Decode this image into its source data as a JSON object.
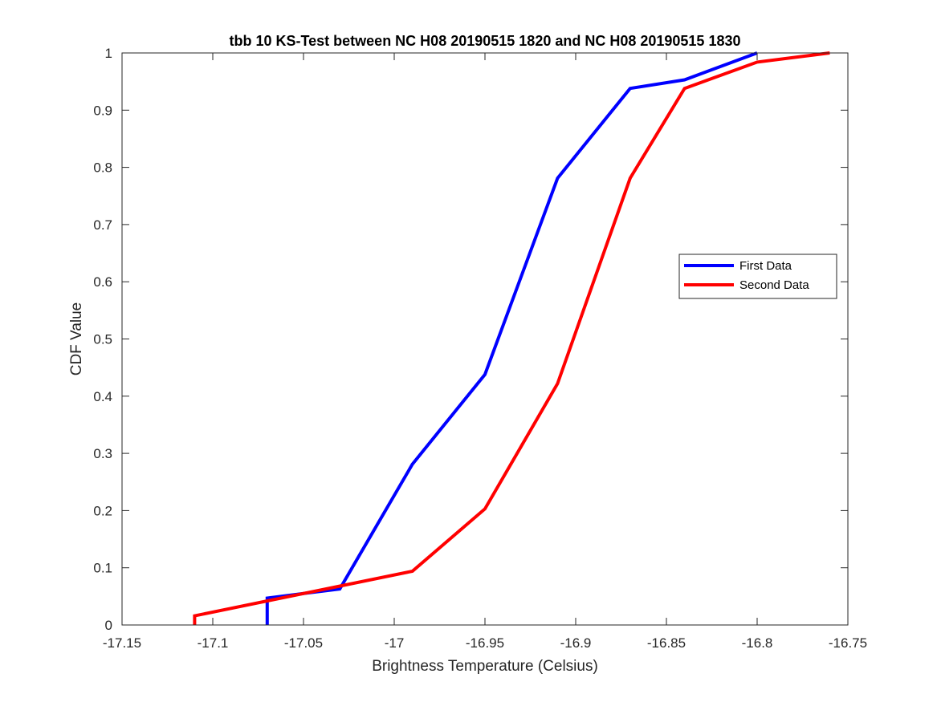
{
  "chart_data": {
    "type": "line",
    "title": "tbb 10 KS-Test between NC H08 20190515 1820 and NC H08 20190515 1830",
    "xlabel": "Brightness Temperature (Celsius)",
    "ylabel": "CDF Value",
    "xlim": [
      -17.15,
      -16.75
    ],
    "ylim": [
      0,
      1
    ],
    "x_ticks": [
      -17.15,
      -17.1,
      -17.05,
      -17,
      -16.95,
      -16.9,
      -16.85,
      -16.8,
      -16.75
    ],
    "x_tick_labels": [
      "-17.15",
      "-17.1",
      "-17.05",
      "-17",
      "-16.95",
      "-16.9",
      "-16.85",
      "-16.8",
      "-16.75"
    ],
    "y_ticks": [
      0,
      0.1,
      0.2,
      0.3,
      0.4,
      0.5,
      0.6,
      0.7,
      0.8,
      0.9,
      1
    ],
    "y_tick_labels": [
      "0",
      "0.1",
      "0.2",
      "0.3",
      "0.4",
      "0.5",
      "0.6",
      "0.7",
      "0.8",
      "0.9",
      "1"
    ],
    "grid": false,
    "legend_position": "right",
    "series": [
      {
        "name": "First Data",
        "color": "#0000ff",
        "x": [
          -17.07,
          -17.07,
          -17.03,
          -16.99,
          -16.95,
          -16.91,
          -16.87,
          -16.84,
          -16.8
        ],
        "y": [
          0,
          0.047,
          0.063,
          0.281,
          0.438,
          0.781,
          0.938,
          0.953,
          1.0
        ]
      },
      {
        "name": "Second Data",
        "color": "#ff0000",
        "x": [
          -17.11,
          -17.11,
          -16.99,
          -16.95,
          -16.91,
          -16.87,
          -16.84,
          -16.8,
          -16.76
        ],
        "y": [
          0,
          0.016,
          0.094,
          0.203,
          0.422,
          0.781,
          0.938,
          0.984,
          1.0
        ]
      }
    ]
  }
}
